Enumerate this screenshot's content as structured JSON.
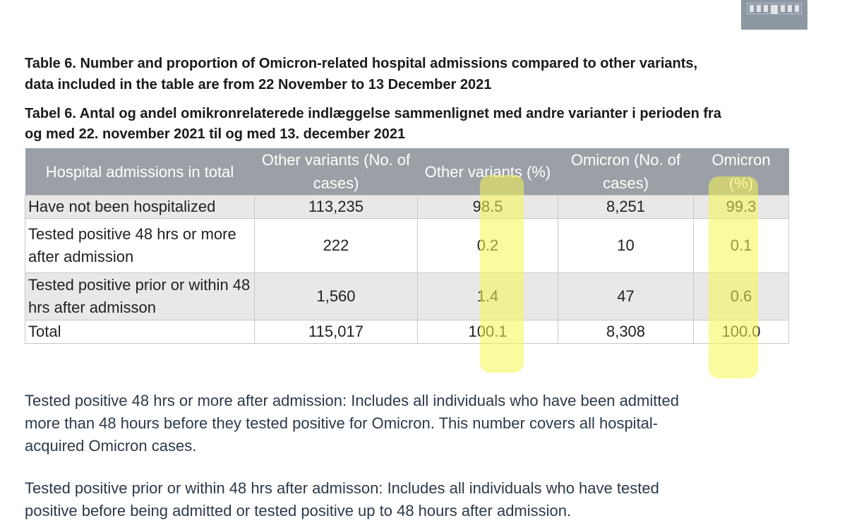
{
  "caption_en": "Table 6. Number and proportion of Omicron-related hospital admissions compared to other variants, data included in the table are from 22 November to 13 December 2021",
  "caption_da": "Tabel 6. Antal og andel omikronrelaterede indlæggelse sammenlignet med andre varianter i perioden fra og med 22. november 2021 til og med 13. december 2021",
  "table": {
    "headers": [
      "Hospital admissions in total",
      "Other variants (No. of cases)",
      "Other variants (%)",
      "Omicron (No. of cases)",
      "Omicron (%)"
    ],
    "rows": [
      [
        "Have not been hospitalized",
        "113,235",
        "98.5",
        "8,251",
        "99.3"
      ],
      [
        "Tested positive 48 hrs or more after admission",
        "222",
        "0.2",
        "10",
        "0.1"
      ],
      [
        "Tested positive prior or within 48 hrs after admisson",
        "1,560",
        "1.4",
        "47",
        "0.6"
      ],
      [
        "Total",
        "115,017",
        "100.1",
        "8,308",
        "100.0"
      ]
    ],
    "header_color": "#9aa0a6",
    "stripe_color": "#e8e8e8"
  },
  "highlight_color": "#f5f550",
  "notes": [
    "Tested positive 48 hrs or more after admission: Includes all individuals who have been admitted more than 48 hours before they tested positive for Omicron. This number covers all hospital-acquired Omicron cases.",
    "Tested positive prior or within 48 hrs after admisson: Includes all individuals who have tested positive before being admitted or tested positive up to 48 hours after admission."
  ],
  "logo_icon": "building-logo-icon"
}
